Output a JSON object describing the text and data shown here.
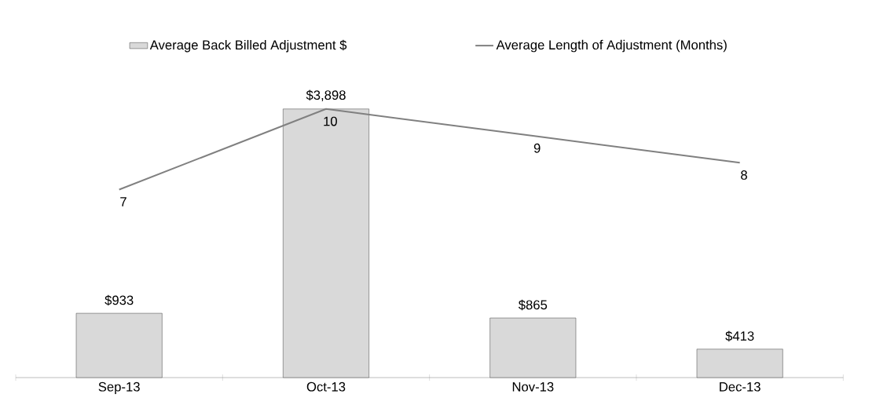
{
  "chart_data": {
    "type": "bar",
    "categories": [
      "Sep-13",
      "Oct-13",
      "Nov-13",
      "Dec-13"
    ],
    "series": [
      {
        "name": "Average Back Billed Adjustment $",
        "color": "#d9d9d9",
        "values": [
          933,
          3898,
          865,
          413
        ],
        "value_labels": [
          "$933",
          "$3,898",
          "$865",
          "$413"
        ]
      },
      {
        "name": "Average Length of Adjustment (Months)",
        "type": "line",
        "axis": "y2",
        "color": "#808080",
        "values": [
          7,
          10,
          9,
          8
        ],
        "value_labels": [
          "7",
          "10",
          "9",
          "8"
        ]
      }
    ],
    "legend": "top"
  }
}
